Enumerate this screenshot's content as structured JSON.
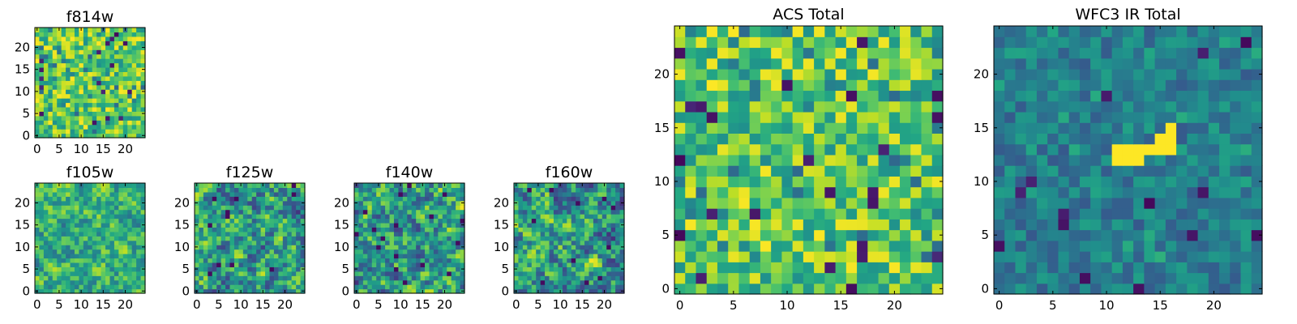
{
  "chart_data": [
    {
      "type": "heatmap",
      "title": "f814w",
      "xlim": [
        0,
        24
      ],
      "ylim": [
        0,
        24
      ],
      "xticks": [
        "0",
        "5",
        "10",
        "15",
        "20"
      ],
      "yticks": [
        "0",
        "5",
        "10",
        "15",
        "20"
      ],
      "colormap": "viridis",
      "texture": "speckled-bright",
      "seed": 11
    },
    {
      "type": "heatmap",
      "title": "f105w",
      "xlim": [
        0,
        24
      ],
      "ylim": [
        0,
        24
      ],
      "xticks": [
        "0",
        "5",
        "10",
        "15",
        "20"
      ],
      "yticks": [
        "0",
        "5",
        "10",
        "15",
        "20"
      ],
      "colormap": "viridis",
      "texture": "smooth-bright",
      "seed": 23
    },
    {
      "type": "heatmap",
      "title": "f125w",
      "xlim": [
        0,
        24
      ],
      "ylim": [
        0,
        24
      ],
      "xticks": [
        "0",
        "5",
        "10",
        "15",
        "20"
      ],
      "yticks": [
        "0",
        "5",
        "10",
        "15",
        "20"
      ],
      "colormap": "viridis",
      "texture": "smooth-mid",
      "seed": 37
    },
    {
      "type": "heatmap",
      "title": "f140w",
      "xlim": [
        0,
        24
      ],
      "ylim": [
        0,
        24
      ],
      "xticks": [
        "0",
        "5",
        "10",
        "15",
        "20"
      ],
      "yticks": [
        "0",
        "5",
        "10",
        "15",
        "20"
      ],
      "colormap": "viridis",
      "texture": "smooth-mid",
      "seed": 41
    },
    {
      "type": "heatmap",
      "title": "f160w",
      "xlim": [
        0,
        24
      ],
      "ylim": [
        0,
        24
      ],
      "xticks": [
        "0",
        "5",
        "10",
        "15",
        "20"
      ],
      "yticks": [
        "0",
        "5",
        "10",
        "15",
        "20"
      ],
      "colormap": "viridis",
      "texture": "smooth-mid",
      "seed": 53
    },
    {
      "type": "heatmap",
      "title": "ACS Total",
      "xlim": [
        0,
        24
      ],
      "ylim": [
        0,
        24
      ],
      "xticks": [
        "0",
        "5",
        "10",
        "15",
        "20"
      ],
      "yticks": [
        "0",
        "5",
        "10",
        "15",
        "20"
      ],
      "colormap": "viridis",
      "texture": "speckled-bright",
      "seed": 67
    },
    {
      "type": "heatmap",
      "title": "WFC3 IR Total",
      "xlim": [
        0,
        24
      ],
      "ylim": [
        0,
        24
      ],
      "xticks": [
        "0",
        "5",
        "10",
        "15",
        "20"
      ],
      "yticks": [
        "0",
        "5",
        "10",
        "15",
        "20"
      ],
      "colormap": "viridis",
      "texture": "dark-with-source",
      "seed": 79,
      "bright_source_pixels": [
        [
          11,
          12
        ],
        [
          11,
          13
        ],
        [
          12,
          12
        ],
        [
          12,
          13
        ],
        [
          13,
          12
        ],
        [
          13,
          13
        ],
        [
          14,
          13
        ],
        [
          15,
          13
        ],
        [
          15,
          14
        ],
        [
          16,
          13
        ],
        [
          16,
          14
        ],
        [
          16,
          15
        ]
      ]
    }
  ]
}
